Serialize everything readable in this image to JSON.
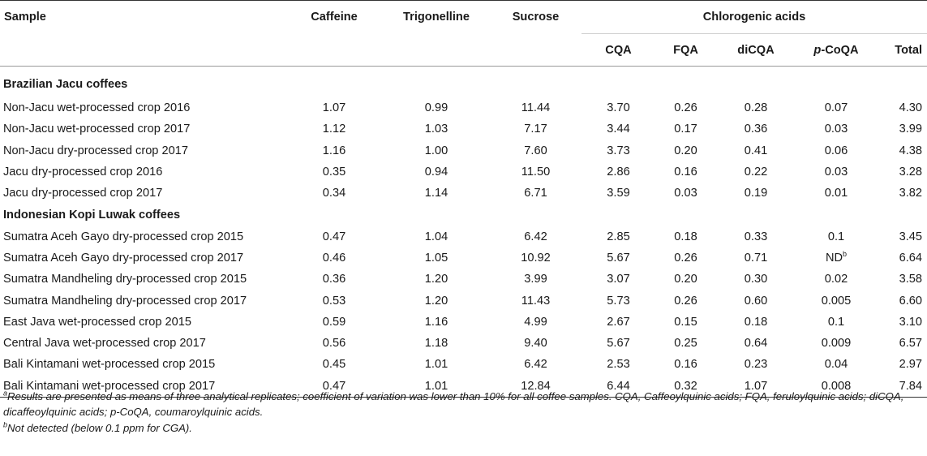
{
  "table": {
    "headers": {
      "sample": "Sample",
      "caffeine": "Caffeine",
      "trigonelline": "Trigonelline",
      "sucrose": "Sucrose",
      "chlorogenic_acids": "Chlorogenic acids",
      "cqa": "CQA",
      "fqa": "FQA",
      "dicqa": "diCQA",
      "pcoqa_prefix": "p",
      "pcoqa_rest": "-CoQA",
      "total": "Total"
    },
    "sections": [
      {
        "title": "Brazilian Jacu coffees",
        "rows": [
          {
            "sample": "Non-Jacu wet-processed crop 2016",
            "caffeine": "1.07",
            "trigonelline": "0.99",
            "sucrose": "11.44",
            "cqa": "3.70",
            "fqa": "0.26",
            "dicqa": "0.28",
            "pcoqa": "0.07",
            "pcoqa_sup": "",
            "total": "4.30"
          },
          {
            "sample": "Non-Jacu wet-processed crop 2017",
            "caffeine": "1.12",
            "trigonelline": "1.03",
            "sucrose": "7.17",
            "cqa": "3.44",
            "fqa": "0.17",
            "dicqa": "0.36",
            "pcoqa": "0.03",
            "pcoqa_sup": "",
            "total": "3.99"
          },
          {
            "sample": "Non-Jacu dry-processed crop 2017",
            "caffeine": "1.16",
            "trigonelline": "1.00",
            "sucrose": "7.60",
            "cqa": "3.73",
            "fqa": "0.20",
            "dicqa": "0.41",
            "pcoqa": "0.06",
            "pcoqa_sup": "",
            "total": "4.38"
          },
          {
            "sample": "Jacu dry-processed crop 2016",
            "caffeine": "0.35",
            "trigonelline": "0.94",
            "sucrose": "11.50",
            "cqa": "2.86",
            "fqa": "0.16",
            "dicqa": "0.22",
            "pcoqa": "0.03",
            "pcoqa_sup": "",
            "total": "3.28"
          },
          {
            "sample": "Jacu dry-processed crop 2017",
            "caffeine": "0.34",
            "trigonelline": "1.14",
            "sucrose": "6.71",
            "cqa": "3.59",
            "fqa": "0.03",
            "dicqa": "0.19",
            "pcoqa": "0.01",
            "pcoqa_sup": "",
            "total": "3.82"
          }
        ]
      },
      {
        "title": "Indonesian Kopi Luwak coffees",
        "rows": [
          {
            "sample": "Sumatra Aceh Gayo dry-processed crop 2015",
            "caffeine": "0.47",
            "trigonelline": "1.04",
            "sucrose": "6.42",
            "cqa": "2.85",
            "fqa": "0.18",
            "dicqa": "0.33",
            "pcoqa": "0.1",
            "pcoqa_sup": "",
            "total": "3.45"
          },
          {
            "sample": "Sumatra Aceh Gayo dry-processed crop 2017",
            "caffeine": "0.46",
            "trigonelline": "1.05",
            "sucrose": "10.92",
            "cqa": "5.67",
            "fqa": "0.26",
            "dicqa": "0.71",
            "pcoqa": "ND",
            "pcoqa_sup": "b",
            "total": "6.64"
          },
          {
            "sample": "Sumatra Mandheling dry-processed crop 2015",
            "caffeine": "0.36",
            "trigonelline": "1.20",
            "sucrose": "3.99",
            "cqa": "3.07",
            "fqa": "0.20",
            "dicqa": "0.30",
            "pcoqa": "0.02",
            "pcoqa_sup": "",
            "total": "3.58"
          },
          {
            "sample": "Sumatra Mandheling dry-processed crop 2017",
            "caffeine": "0.53",
            "trigonelline": "1.20",
            "sucrose": "11.43",
            "cqa": "5.73",
            "fqa": "0.26",
            "dicqa": "0.60",
            "pcoqa": "0.005",
            "pcoqa_sup": "",
            "total": "6.60"
          },
          {
            "sample": "East Java wet-processed crop 2015",
            "caffeine": "0.59",
            "trigonelline": "1.16",
            "sucrose": "4.99",
            "cqa": "2.67",
            "fqa": "0.15",
            "dicqa": "0.18",
            "pcoqa": "0.1",
            "pcoqa_sup": "",
            "total": "3.10"
          },
          {
            "sample": "Central Java wet-processed crop 2017",
            "caffeine": "0.56",
            "trigonelline": "1.18",
            "sucrose": "9.40",
            "cqa": "5.67",
            "fqa": "0.25",
            "dicqa": "0.64",
            "pcoqa": "0.009",
            "pcoqa_sup": "",
            "total": "6.57"
          },
          {
            "sample": "Bali Kintamani wet-processed crop 2015",
            "caffeine": "0.45",
            "trigonelline": "1.01",
            "sucrose": "6.42",
            "cqa": "2.53",
            "fqa": "0.16",
            "dicqa": "0.23",
            "pcoqa": "0.04",
            "pcoqa_sup": "",
            "total": "2.97"
          },
          {
            "sample": "Bali Kintamani wet-processed crop 2017",
            "caffeine": "0.47",
            "trigonelline": "1.01",
            "sucrose": "12.84",
            "cqa": "6.44",
            "fqa": "0.32",
            "dicqa": "1.07",
            "pcoqa": "0.008",
            "pcoqa_sup": "",
            "total": "7.84"
          }
        ]
      }
    ]
  },
  "footnotes": {
    "a_marker": "a",
    "a_text": "Results are presented as means of three analytical replicates; coefficient of variation was lower than 10% for all coffee samples. CQA, Caffeoylquinic acids; FQA, feruloylquinic acids; diCQA, dicaffeoylquinic acids; p-CoQA, coumaroylquinic acids.",
    "b_marker": "b",
    "b_text": "Not detected (below 0.1 ppm for CGA)."
  }
}
